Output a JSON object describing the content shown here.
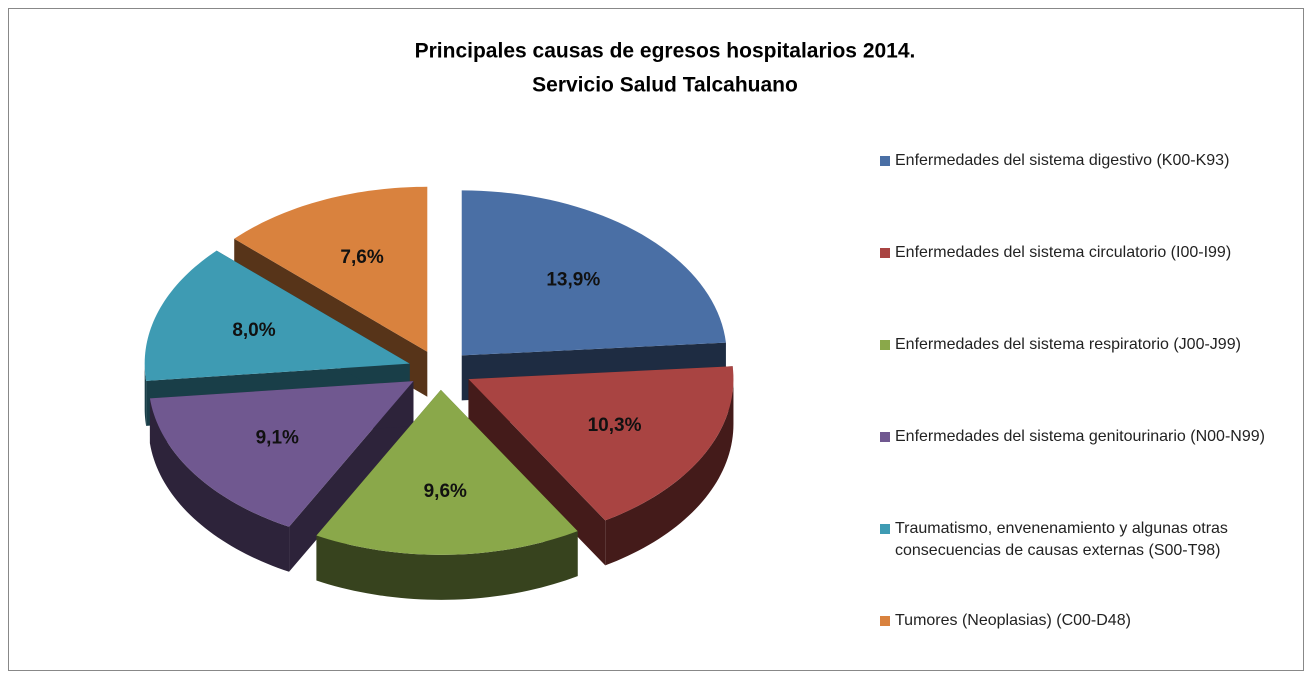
{
  "chart_data": {
    "type": "pie",
    "title": "Principales causas de egresos hospitalarios 2014.",
    "subtitle": "Servicio Salud Talcahuano",
    "categories": [
      "Enfermedades del sistema digestivo (K00-K93)",
      "Enfermedades del sistema circulatorio (I00-I99)",
      "Enfermedades del sistema respiratorio (J00-J99)",
      "Enfermedades del sistema genitourinario (N00-N99)",
      "Traumatismo, envenenamiento y algunas otras consecuencias de causas externas (S00-T98)",
      "Tumores (Neoplasias) (C00-D48)"
    ],
    "values": [
      13.9,
      10.3,
      9.6,
      9.1,
      8.0,
      7.6
    ],
    "value_labels": [
      "13,9%",
      "10,3%",
      "9,6%",
      "9,1%",
      "8,0%",
      "7,6%"
    ],
    "colors": [
      "#4a6fa5",
      "#a94442",
      "#8aa84a",
      "#705890",
      "#3e9bb3",
      "#d9823e"
    ],
    "legend": "right"
  }
}
